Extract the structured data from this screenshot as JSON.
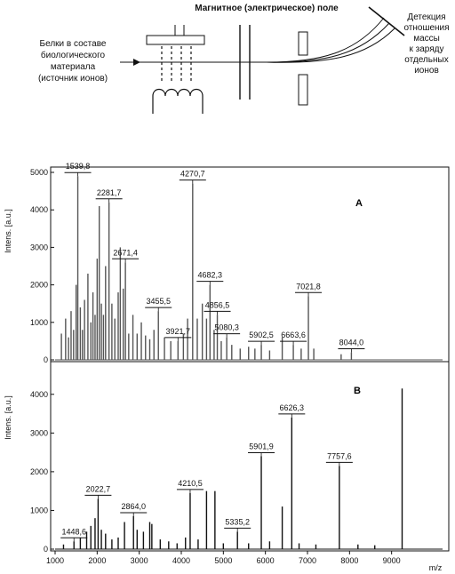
{
  "scheme": {
    "field_title": "Магнитное (электрическое) поле",
    "source_lines": [
      "Белки в составе",
      "биологического",
      "материала",
      "(источник ионов)"
    ],
    "detector_lines": [
      "Детекция",
      "отношения",
      "массы",
      "к заряду",
      "отдельных",
      "ионов"
    ]
  },
  "chart_data": {
    "type": "line",
    "xlabel": "m/z",
    "xlim": [
      1000,
      10000
    ],
    "x_ticks": [
      1000,
      2000,
      3000,
      4000,
      5000,
      6000,
      7000,
      8000,
      9000
    ],
    "grid": false,
    "panels": [
      {
        "label": "A",
        "ylabel": "Intens. [a.u.]",
        "ylim": [
          0,
          5000
        ],
        "y_ticks": [
          0,
          1000,
          2000,
          3000,
          4000,
          5000
        ],
        "color": "#555555",
        "peaks": [
          [
            1150,
            700
          ],
          [
            1250,
            1100
          ],
          [
            1320,
            600
          ],
          [
            1380,
            1300
          ],
          [
            1440,
            800
          ],
          [
            1500,
            2000
          ],
          [
            1539.8,
            4900
          ],
          [
            1600,
            1400
          ],
          [
            1650,
            800
          ],
          [
            1700,
            1600
          ],
          [
            1780,
            2300
          ],
          [
            1850,
            1000
          ],
          [
            1900,
            1800
          ],
          [
            1950,
            1200
          ],
          [
            2000,
            2700
          ],
          [
            2050,
            4100
          ],
          [
            2100,
            1500
          ],
          [
            2150,
            1200
          ],
          [
            2200,
            2500
          ],
          [
            2281.7,
            4200
          ],
          [
            2350,
            1500
          ],
          [
            2420,
            1100
          ],
          [
            2500,
            1800
          ],
          [
            2550,
            3000
          ],
          [
            2620,
            1900
          ],
          [
            2671.4,
            2600
          ],
          [
            2750,
            700
          ],
          [
            2850,
            1200
          ],
          [
            2950,
            700
          ],
          [
            3050,
            1000
          ],
          [
            3150,
            650
          ],
          [
            3250,
            550
          ],
          [
            3350,
            800
          ],
          [
            3455.5,
            1300
          ],
          [
            3600,
            600
          ],
          [
            3750,
            500
          ],
          [
            3921.7,
            500
          ],
          [
            4050,
            700
          ],
          [
            4150,
            1100
          ],
          [
            4270.7,
            4700
          ],
          [
            4380,
            1100
          ],
          [
            4500,
            1500
          ],
          [
            4600,
            1100
          ],
          [
            4682.3,
            2000
          ],
          [
            4780,
            800
          ],
          [
            4856.5,
            1200
          ],
          [
            4950,
            500
          ],
          [
            5080.3,
            600
          ],
          [
            5200,
            400
          ],
          [
            5400,
            300
          ],
          [
            5600,
            350
          ],
          [
            5750,
            300
          ],
          [
            5902.5,
            400
          ],
          [
            6100,
            250
          ],
          [
            6400,
            600
          ],
          [
            6663.6,
            400
          ],
          [
            6850,
            300
          ],
          [
            7021.8,
            1700
          ],
          [
            7150,
            300
          ],
          [
            7800,
            150
          ],
          [
            8044.0,
            200
          ]
        ],
        "labels": [
          {
            "text": "1539,8",
            "x": 1539.8,
            "y": 4900
          },
          {
            "text": "2281,7",
            "x": 2281.7,
            "y": 4200
          },
          {
            "text": "2671,4",
            "x": 2671.4,
            "y": 2600
          },
          {
            "text": "3455,5",
            "x": 3455.5,
            "y": 1300
          },
          {
            "text": "3921,7",
            "x": 3921.7,
            "y": 500
          },
          {
            "text": "4270,7",
            "x": 4270.7,
            "y": 4700
          },
          {
            "text": "4682,3",
            "x": 4682.3,
            "y": 2000
          },
          {
            "text": "4856,5",
            "x": 4856.5,
            "y": 1200
          },
          {
            "text": "5080,3",
            "x": 5080.3,
            "y": 600
          },
          {
            "text": "5902,5",
            "x": 5902.5,
            "y": 400
          },
          {
            "text": "6663,6",
            "x": 6663.6,
            "y": 400
          },
          {
            "text": "7021,8",
            "x": 7021.8,
            "y": 1700
          },
          {
            "text": "8044,0",
            "x": 8044.0,
            "y": 200
          }
        ]
      },
      {
        "label": "B",
        "ylabel": "Intens. [a.u.]",
        "ylim": [
          0,
          4500
        ],
        "y_ticks": [
          0,
          1000,
          2000,
          3000,
          4000
        ],
        "color": "#111111",
        "peaks": [
          [
            1200,
            120
          ],
          [
            1448.6,
            200
          ],
          [
            1600,
            300
          ],
          [
            1750,
            450
          ],
          [
            1850,
            600
          ],
          [
            1950,
            800
          ],
          [
            2022.7,
            1300
          ],
          [
            2100,
            500
          ],
          [
            2200,
            400
          ],
          [
            2350,
            250
          ],
          [
            2500,
            300
          ],
          [
            2650,
            700
          ],
          [
            2864.0,
            850
          ],
          [
            2950,
            500
          ],
          [
            3100,
            450
          ],
          [
            3250,
            700
          ],
          [
            3300,
            650
          ],
          [
            3500,
            250
          ],
          [
            3700,
            200
          ],
          [
            3900,
            150
          ],
          [
            4100,
            300
          ],
          [
            4210.5,
            1450
          ],
          [
            4400,
            250
          ],
          [
            4600,
            1500
          ],
          [
            4800,
            1500
          ],
          [
            5000,
            150
          ],
          [
            5335.2,
            450
          ],
          [
            5600,
            150
          ],
          [
            5901.9,
            2400
          ],
          [
            6100,
            200
          ],
          [
            6400,
            1100
          ],
          [
            6626.3,
            3400
          ],
          [
            6800,
            150
          ],
          [
            7200,
            120
          ],
          [
            7757.6,
            2150
          ],
          [
            8200,
            120
          ],
          [
            8600,
            100
          ],
          [
            9250,
            4150
          ]
        ],
        "labels": [
          {
            "text": "1448,6",
            "x": 1448.6,
            "y": 200
          },
          {
            "text": "2022,7",
            "x": 2022.7,
            "y": 1300
          },
          {
            "text": "2864,0",
            "x": 2864.0,
            "y": 850
          },
          {
            "text": "4210,5",
            "x": 4210.5,
            "y": 1450
          },
          {
            "text": "5335,2",
            "x": 5335.2,
            "y": 450
          },
          {
            "text": "5901,9",
            "x": 5901.9,
            "y": 2400
          },
          {
            "text": "6626,3",
            "x": 6626.3,
            "y": 3400
          },
          {
            "text": "7757,6",
            "x": 7757.6,
            "y": 2150
          }
        ]
      }
    ]
  }
}
